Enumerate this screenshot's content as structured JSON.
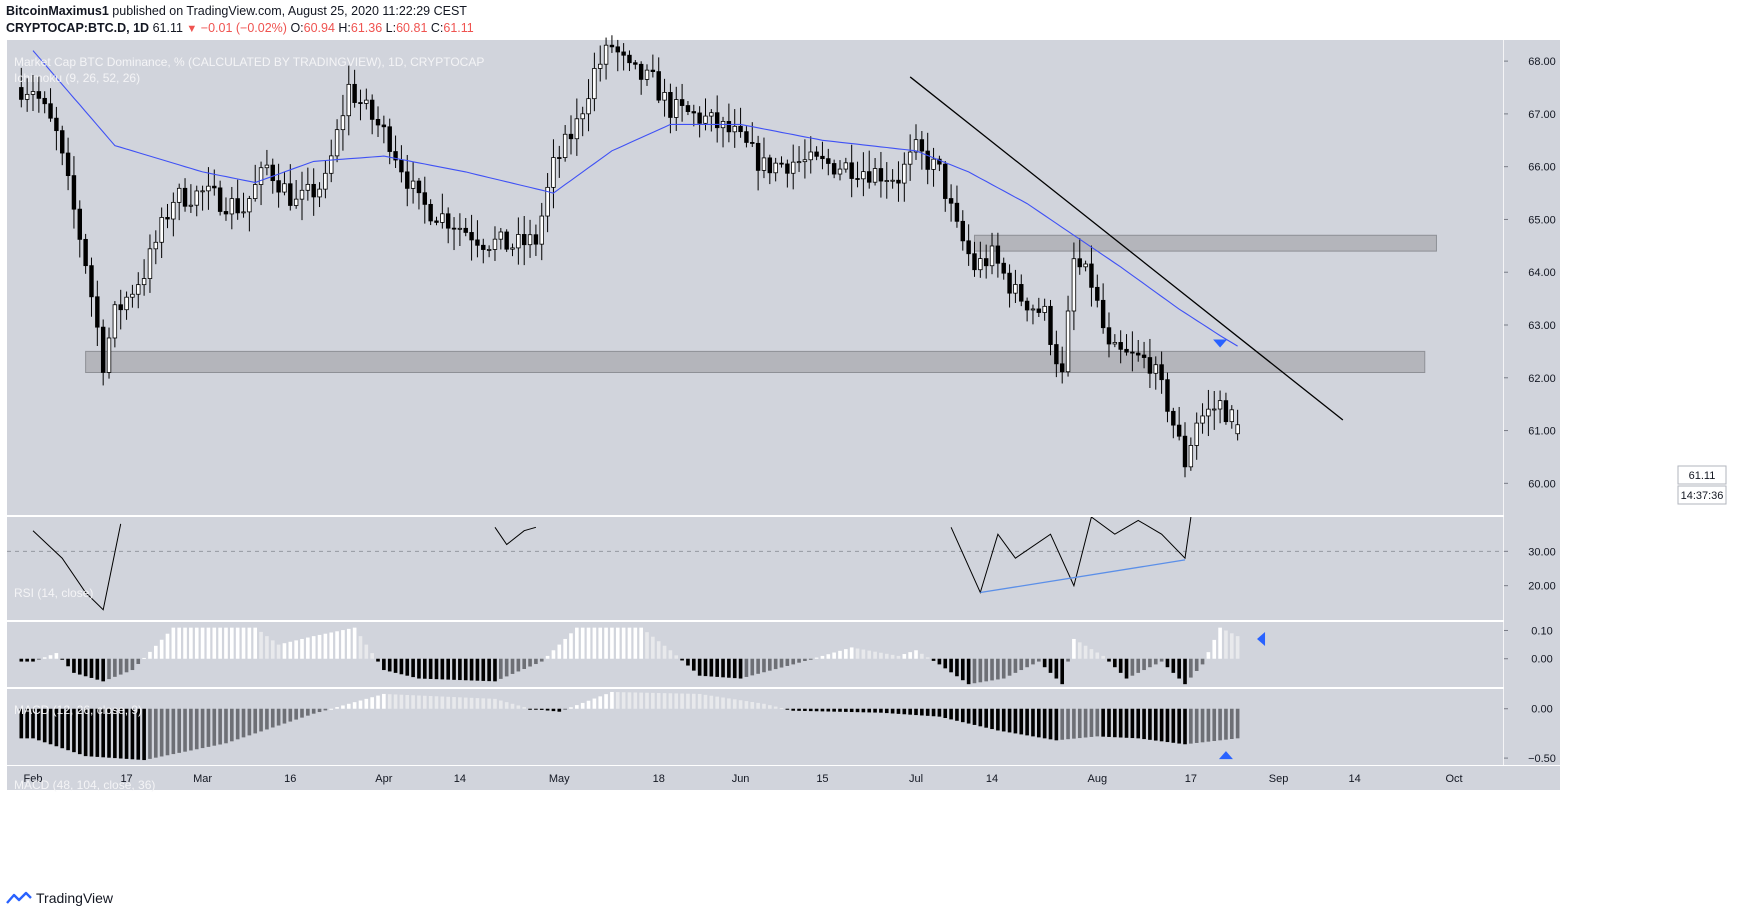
{
  "header": {
    "author": "BitcoinMaximus1",
    "published_text": "published on TradingView.com, August 25, 2020 11:22:29 CEST",
    "symbol": "CRYPTOCAP:BTC.D, 1D",
    "last": "61.11",
    "change": "−0.01 (−0.02%)",
    "open_label": "O:",
    "open": "60.94",
    "high_label": "H:",
    "high": "61.36",
    "low_label": "L:",
    "low": "60.81",
    "close_label": "C:",
    "close": "61.11"
  },
  "panes": {
    "main_title": "Market Cap BTC Dominance, % (CALCULATED BY TRADINGVIEW), 1D, CRYPTOCAP",
    "ichimoku_label": "Ichimoku (9, 26, 52, 26)",
    "rsi_label": "RSI (14, close)",
    "macd1_label": "MACD (12, 26, close, 9)",
    "macd2_label": "MACD (48, 104, close, 36)"
  },
  "price_badge": "61.11",
  "countdown_badge": "14:37:36",
  "footer": {
    "brand": "TradingView"
  },
  "colors": {
    "background": "#d1d4dc",
    "candle_up": "#ffffff",
    "candle_down": "#000000",
    "ma_line": "#3f51f5",
    "trendline": "#000000",
    "rsi_divergence": "#5b8fe8",
    "marker": "#2962ff",
    "zone": "#a9abb0"
  },
  "chart_data": {
    "type": "candlestick",
    "title": "Market Cap BTC Dominance, % (CALCULATED BY TRADINGVIEW), 1D, CRYPTOCAP",
    "ylabel": "%",
    "ylim": [
      59.4,
      68.4
    ],
    "y_ticks": [
      "60.00",
      "61.00",
      "62.00",
      "63.00",
      "64.00",
      "65.00",
      "66.00",
      "67.00",
      "68.00"
    ],
    "x_ticks": [
      "Feb",
      "17",
      "Mar",
      "16",
      "Apr",
      "14",
      "May",
      "18",
      "Jun",
      "15",
      "Jul",
      "14",
      "Aug",
      "17",
      "Sep",
      "14",
      "Oct"
    ],
    "price_anchors": [
      [
        "2020-02-01",
        67.5
      ],
      [
        "2020-02-05",
        66.6
      ],
      [
        "2020-02-10",
        64.2
      ],
      [
        "2020-02-13",
        62.3
      ],
      [
        "2020-02-15",
        63.2
      ],
      [
        "2020-02-20",
        64.0
      ],
      [
        "2020-02-25",
        65.4
      ],
      [
        "2020-03-01",
        65.5
      ],
      [
        "2020-03-08",
        65.2
      ],
      [
        "2020-03-12",
        66.0
      ],
      [
        "2020-03-17",
        65.3
      ],
      [
        "2020-03-22",
        65.7
      ],
      [
        "2020-03-26",
        67.5
      ],
      [
        "2020-03-28",
        67.2
      ],
      [
        "2020-04-02",
        66.5
      ],
      [
        "2020-04-07",
        65.3
      ],
      [
        "2020-04-12",
        65.0
      ],
      [
        "2020-04-18",
        64.6
      ],
      [
        "2020-04-23",
        64.5
      ],
      [
        "2020-04-27",
        64.6
      ],
      [
        "2020-04-30",
        66.0
      ],
      [
        "2020-05-04",
        66.8
      ],
      [
        "2020-05-07",
        67.8
      ],
      [
        "2020-05-10",
        68.3
      ],
      [
        "2020-05-13",
        67.8
      ],
      [
        "2020-05-17",
        67.6
      ],
      [
        "2020-05-20",
        67.1
      ],
      [
        "2020-05-26",
        66.9
      ],
      [
        "2020-05-31",
        66.6
      ],
      [
        "2020-06-05",
        66.0
      ],
      [
        "2020-06-10",
        66.1
      ],
      [
        "2020-06-20",
        66.0
      ],
      [
        "2020-06-28",
        65.8
      ],
      [
        "2020-07-01",
        66.3
      ],
      [
        "2020-07-05",
        65.9
      ],
      [
        "2020-07-08",
        64.8
      ],
      [
        "2020-07-11",
        64.1
      ],
      [
        "2020-07-14",
        64.3
      ],
      [
        "2020-07-18",
        63.6
      ],
      [
        "2020-07-23",
        63.2
      ],
      [
        "2020-07-26",
        62.0
      ],
      [
        "2020-07-28",
        64.2
      ],
      [
        "2020-07-31",
        63.8
      ],
      [
        "2020-08-03",
        62.5
      ],
      [
        "2020-08-06",
        62.4
      ],
      [
        "2020-08-10",
        62.3
      ],
      [
        "2020-08-13",
        61.5
      ],
      [
        "2020-08-16",
        60.4
      ],
      [
        "2020-08-18",
        61.2
      ],
      [
        "2020-08-22",
        61.5
      ],
      [
        "2020-08-25",
        61.11
      ]
    ],
    "ma_anchors": [
      [
        "2020-02-01",
        68.2
      ],
      [
        "2020-02-15",
        66.4
      ],
      [
        "2020-03-01",
        65.9
      ],
      [
        "2020-03-10",
        65.7
      ],
      [
        "2020-03-20",
        66.1
      ],
      [
        "2020-04-01",
        66.2
      ],
      [
        "2020-04-15",
        65.9
      ],
      [
        "2020-04-30",
        65.5
      ],
      [
        "2020-05-10",
        66.3
      ],
      [
        "2020-05-20",
        66.8
      ],
      [
        "2020-06-01",
        66.8
      ],
      [
        "2020-06-15",
        66.5
      ],
      [
        "2020-07-01",
        66.3
      ],
      [
        "2020-07-10",
        65.9
      ],
      [
        "2020-07-20",
        65.3
      ],
      [
        "2020-07-28",
        64.7
      ],
      [
        "2020-08-05",
        64.1
      ],
      [
        "2020-08-15",
        63.3
      ],
      [
        "2020-08-22",
        62.8
      ],
      [
        "2020-08-25",
        62.6
      ]
    ],
    "zones": [
      {
        "from": "2020-02-10",
        "to": "2020-09-26",
        "low": 62.1,
        "high": 62.5
      },
      {
        "from": "2020-07-11",
        "to": "2020-09-28",
        "low": 64.4,
        "high": 64.7
      }
    ],
    "trendline": {
      "from": [
        "2020-06-30",
        67.7
      ],
      "to": [
        "2020-09-12",
        61.2
      ]
    },
    "rsi": {
      "ylim": [
        10,
        40
      ],
      "y_ticks": [
        "20.00",
        "30.00"
      ],
      "guide_level": 30,
      "anchors": [
        [
          "2020-02-01",
          36
        ],
        [
          "2020-02-06",
          28
        ],
        [
          "2020-02-10",
          18
        ],
        [
          "2020-02-13",
          13
        ],
        [
          "2020-02-16",
          38
        ],
        [
          "2020-04-20",
          37
        ],
        [
          "2020-04-22",
          32
        ],
        [
          "2020-04-25",
          36
        ],
        [
          "2020-04-27",
          37
        ],
        [
          "2020-07-07",
          37
        ],
        [
          "2020-07-12",
          18
        ],
        [
          "2020-07-15",
          35
        ],
        [
          "2020-07-18",
          28
        ],
        [
          "2020-07-24",
          35
        ],
        [
          "2020-07-28",
          20
        ],
        [
          "2020-07-31",
          40
        ],
        [
          "2020-08-04",
          35
        ],
        [
          "2020-08-08",
          39
        ],
        [
          "2020-08-12",
          35
        ],
        [
          "2020-08-16",
          28
        ],
        [
          "2020-08-17",
          40
        ]
      ],
      "divergence_line": {
        "from": [
          "2020-07-12",
          18
        ],
        "to": [
          "2020-08-16",
          27.5
        ]
      }
    },
    "macd_fast": {
      "ylim": [
        -0.1,
        0.13
      ],
      "y_ticks": [
        "0.10",
        "0.00"
      ],
      "anchors": [
        [
          "2020-02-01",
          -0.01
        ],
        [
          "2020-02-05",
          0.02
        ],
        [
          "2020-02-08",
          -0.05
        ],
        [
          "2020-02-13",
          -0.08
        ],
        [
          "2020-02-18",
          -0.04
        ],
        [
          "2020-02-25",
          0.11
        ],
        [
          "2020-03-10",
          0.11
        ],
        [
          "2020-03-14",
          0.05
        ],
        [
          "2020-03-20",
          0.08
        ],
        [
          "2020-03-27",
          0.11
        ],
        [
          "2020-04-01",
          -0.04
        ],
        [
          "2020-04-07",
          -0.07
        ],
        [
          "2020-04-20",
          -0.08
        ],
        [
          "2020-04-28",
          -0.01
        ],
        [
          "2020-05-04",
          0.11
        ],
        [
          "2020-05-15",
          0.11
        ],
        [
          "2020-05-20",
          0.03
        ],
        [
          "2020-05-25",
          -0.06
        ],
        [
          "2020-06-01",
          -0.07
        ],
        [
          "2020-06-10",
          -0.02
        ],
        [
          "2020-06-20",
          0.04
        ],
        [
          "2020-06-28",
          0.01
        ],
        [
          "2020-07-01",
          0.03
        ],
        [
          "2020-07-05",
          -0.02
        ],
        [
          "2020-07-10",
          -0.09
        ],
        [
          "2020-07-16",
          -0.07
        ],
        [
          "2020-07-22",
          -0.01
        ],
        [
          "2020-07-26",
          -0.09
        ],
        [
          "2020-07-28",
          0.07
        ],
        [
          "2020-08-02",
          0.01
        ],
        [
          "2020-08-06",
          -0.07
        ],
        [
          "2020-08-12",
          -0.01
        ],
        [
          "2020-08-16",
          -0.09
        ],
        [
          "2020-08-19",
          -0.02
        ],
        [
          "2020-08-22",
          0.11
        ],
        [
          "2020-08-25",
          0.08
        ]
      ]
    },
    "macd_slow": {
      "ylim": [
        -0.57,
        0.2
      ],
      "y_ticks": [
        "0.00",
        "−0.50"
      ],
      "anchors": [
        [
          "2020-02-01",
          -0.3
        ],
        [
          "2020-02-10",
          -0.48
        ],
        [
          "2020-02-20",
          -0.52
        ],
        [
          "2020-03-05",
          -0.35
        ],
        [
          "2020-03-20",
          -0.05
        ],
        [
          "2020-04-01",
          0.15
        ],
        [
          "2020-04-20",
          0.1
        ],
        [
          "2020-04-26",
          0.0
        ],
        [
          "2020-05-01",
          -0.03
        ],
        [
          "2020-05-10",
          0.17
        ],
        [
          "2020-05-25",
          0.15
        ],
        [
          "2020-06-05",
          0.05
        ],
        [
          "2020-06-10",
          -0.02
        ],
        [
          "2020-06-25",
          -0.04
        ],
        [
          "2020-07-05",
          -0.08
        ],
        [
          "2020-07-15",
          -0.22
        ],
        [
          "2020-07-25",
          -0.32
        ],
        [
          "2020-08-01",
          -0.28
        ],
        [
          "2020-08-08",
          -0.3
        ],
        [
          "2020-08-16",
          -0.36
        ],
        [
          "2020-08-25",
          -0.3
        ]
      ]
    }
  }
}
